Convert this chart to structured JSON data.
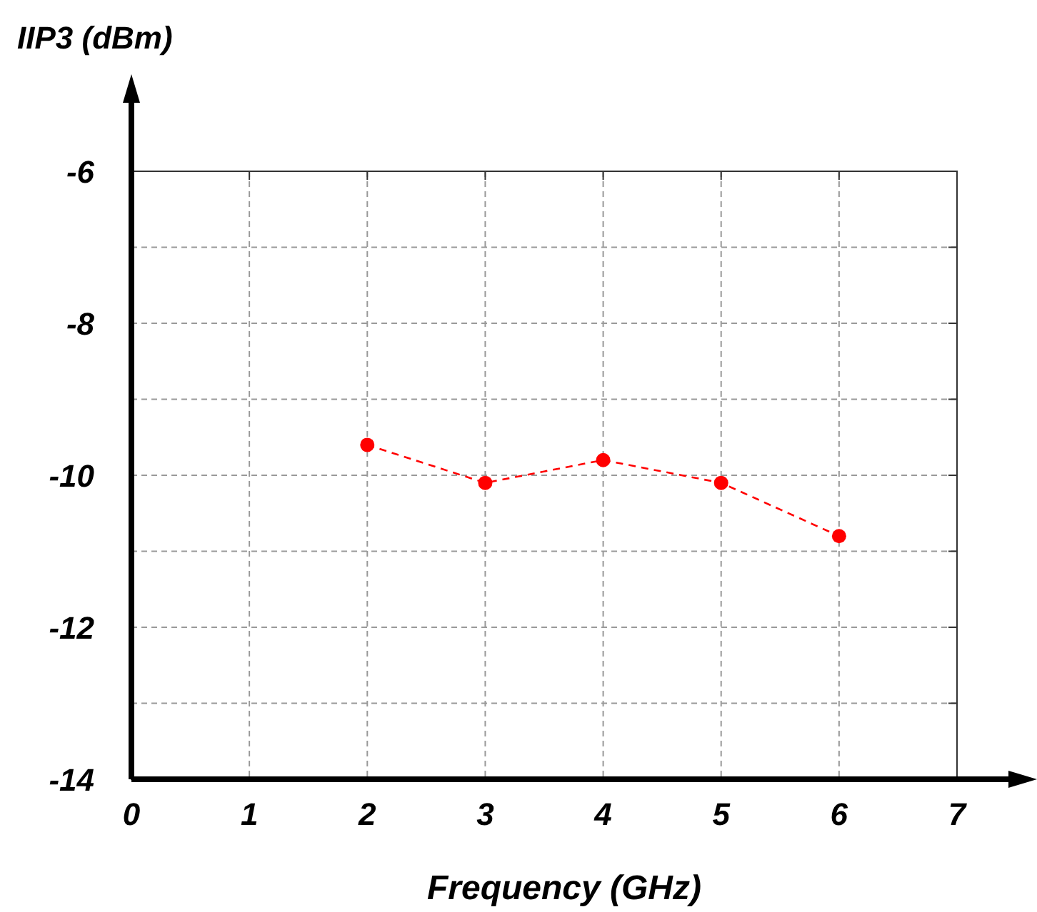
{
  "chart_data": {
    "type": "line",
    "xlabel": "Frequency (GHz)",
    "ylabel": "IIP3 (dBm)",
    "x": [
      2,
      3,
      4,
      5,
      6
    ],
    "series": [
      {
        "color": "#ff0000",
        "values": [
          -9.6,
          -10.1,
          -9.8,
          -10.1,
          -10.8
        ]
      }
    ],
    "xlim": [
      0,
      7
    ],
    "xticks": [
      0,
      1,
      2,
      3,
      4,
      5,
      6,
      7
    ],
    "ylim": [
      -14,
      -6
    ],
    "yticks": [
      -14,
      {
        "value": -13,
        "label": null
      },
      -12,
      {
        "value": -11,
        "label": null
      },
      -10,
      {
        "value": -9,
        "label": null
      },
      -8,
      {
        "value": -7,
        "label": null
      },
      -6
    ],
    "grid": true,
    "marker": "circle",
    "line_style": "dashed"
  }
}
